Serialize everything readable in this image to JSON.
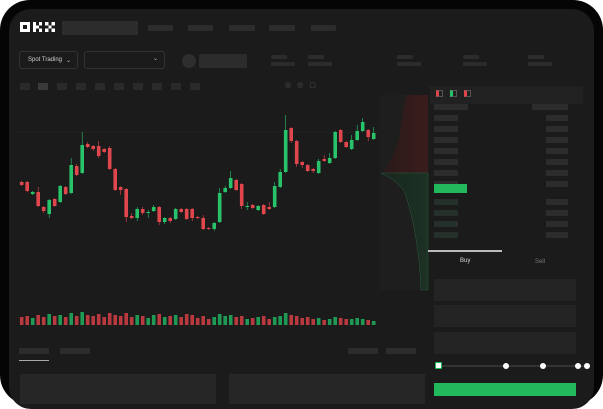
{
  "header": {
    "logo": "OKX",
    "spot_trading_label": "Spot Trading"
  },
  "trade_panel": {
    "tabs": [
      {
        "label": "Buy",
        "active": true
      },
      {
        "label": "Sell",
        "active": false
      }
    ],
    "buy_color": "#21b95b",
    "slider_percent": 0
  },
  "colors": {
    "up": "#27c26a",
    "down": "#e0474c",
    "background": "#1b1b1b"
  },
  "chart_data": {
    "type": "candlestick",
    "candles": [
      [
        53,
        50,
        54,
        49
      ],
      [
        53,
        44,
        54,
        43
      ],
      [
        41,
        43,
        44,
        40
      ],
      [
        43,
        29,
        48,
        28
      ],
      [
        28,
        24,
        29,
        22
      ],
      [
        21,
        35,
        36,
        17
      ],
      [
        36,
        29,
        37,
        28
      ],
      [
        33,
        49,
        50,
        32
      ],
      [
        48,
        41,
        49,
        40
      ],
      [
        42,
        70,
        77,
        41
      ],
      [
        69,
        60,
        71,
        59
      ],
      [
        62,
        90,
        103,
        61
      ],
      [
        91,
        88,
        93,
        87
      ],
      [
        89,
        86,
        90,
        84
      ],
      [
        89,
        79,
        94,
        77
      ],
      [
        86,
        83,
        87,
        82
      ],
      [
        87,
        66,
        89,
        65
      ],
      [
        66,
        45,
        67,
        44
      ],
      [
        48,
        45,
        49,
        40
      ],
      [
        46,
        18,
        47,
        13
      ],
      [
        19,
        17,
        22,
        16
      ],
      [
        17,
        26,
        28,
        14
      ],
      [
        26,
        22,
        28,
        20
      ],
      [
        22,
        23,
        25,
        17
      ],
      [
        24,
        28,
        30,
        23
      ],
      [
        28,
        13,
        29,
        10
      ],
      [
        13,
        17,
        18,
        11
      ],
      [
        17,
        14,
        18,
        12
      ],
      [
        16,
        26,
        27,
        15
      ],
      [
        26,
        23,
        27,
        22
      ],
      [
        26,
        16,
        27,
        15
      ],
      [
        26,
        17,
        27,
        14
      ],
      [
        18,
        17,
        19,
        16
      ],
      [
        17,
        6,
        20,
        5
      ],
      [
        7,
        6,
        8,
        5
      ],
      [
        6,
        12,
        13,
        4
      ],
      [
        13,
        42,
        47,
        12
      ],
      [
        43,
        47,
        49,
        42
      ],
      [
        47,
        57,
        64,
        46
      ],
      [
        55,
        45,
        56,
        44
      ],
      [
        51,
        29,
        52,
        26
      ],
      [
        28,
        29,
        33,
        25
      ],
      [
        30,
        27,
        31,
        26
      ],
      [
        25,
        29,
        30,
        24
      ],
      [
        30,
        21,
        31,
        20
      ],
      [
        28,
        26,
        33,
        25
      ],
      [
        28,
        49,
        53,
        27
      ],
      [
        48,
        63,
        66,
        47
      ],
      [
        63,
        105,
        120,
        62
      ],
      [
        107,
        94,
        108,
        92
      ],
      [
        94,
        71,
        95,
        68
      ],
      [
        73,
        70,
        74,
        67
      ],
      [
        70,
        64,
        71,
        63
      ],
      [
        66,
        64,
        67,
        62
      ],
      [
        62,
        74,
        76,
        61
      ],
      [
        76,
        74,
        80,
        73
      ],
      [
        72,
        77,
        82,
        71
      ],
      [
        77,
        103,
        104,
        76
      ],
      [
        105,
        93,
        106,
        92
      ],
      [
        93,
        88,
        94,
        87
      ],
      [
        86,
        95,
        100,
        85
      ],
      [
        95,
        104,
        110,
        94
      ],
      [
        104,
        113,
        117,
        103
      ],
      [
        105,
        98,
        106,
        94
      ],
      [
        96,
        102,
        108,
        95
      ]
    ],
    "volume": [
      8,
      9,
      7,
      10,
      8,
      11,
      9,
      10,
      8,
      12,
      9,
      13,
      10,
      9,
      11,
      8,
      12,
      10,
      9,
      12,
      8,
      10,
      9,
      7,
      10,
      11,
      8,
      9,
      10,
      8,
      11,
      10,
      7,
      9,
      6,
      8,
      11,
      9,
      10,
      8,
      9,
      6,
      7,
      8,
      9,
      6,
      8,
      9,
      12,
      10,
      9,
      7,
      8,
      6,
      7,
      5,
      6,
      8,
      7,
      6,
      6,
      7,
      6,
      5,
      4
    ]
  }
}
